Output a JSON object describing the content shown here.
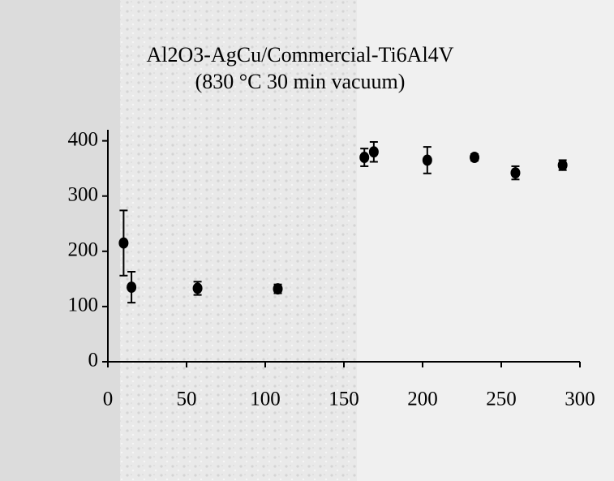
{
  "chart_data": {
    "type": "scatter",
    "title": "Al2O3-AgCu/Commercial-Ti6Al4V",
    "subtitle": "(830 °C 30 min vacuum)",
    "x": [
      10,
      15,
      57,
      108,
      163,
      169,
      203,
      233,
      259,
      289
    ],
    "y": [
      215,
      135,
      133,
      132,
      370,
      380,
      365,
      370,
      342,
      356
    ],
    "errors": [
      59,
      28,
      12,
      8,
      16,
      18,
      24,
      6,
      12,
      9
    ],
    "color": "#000000",
    "xlim": [
      0,
      300
    ],
    "xticks": [
      0,
      50,
      100,
      150,
      200,
      250,
      300
    ],
    "ylim": [
      0,
      420
    ],
    "yticks": [
      0,
      100,
      200,
      300,
      400
    ]
  }
}
